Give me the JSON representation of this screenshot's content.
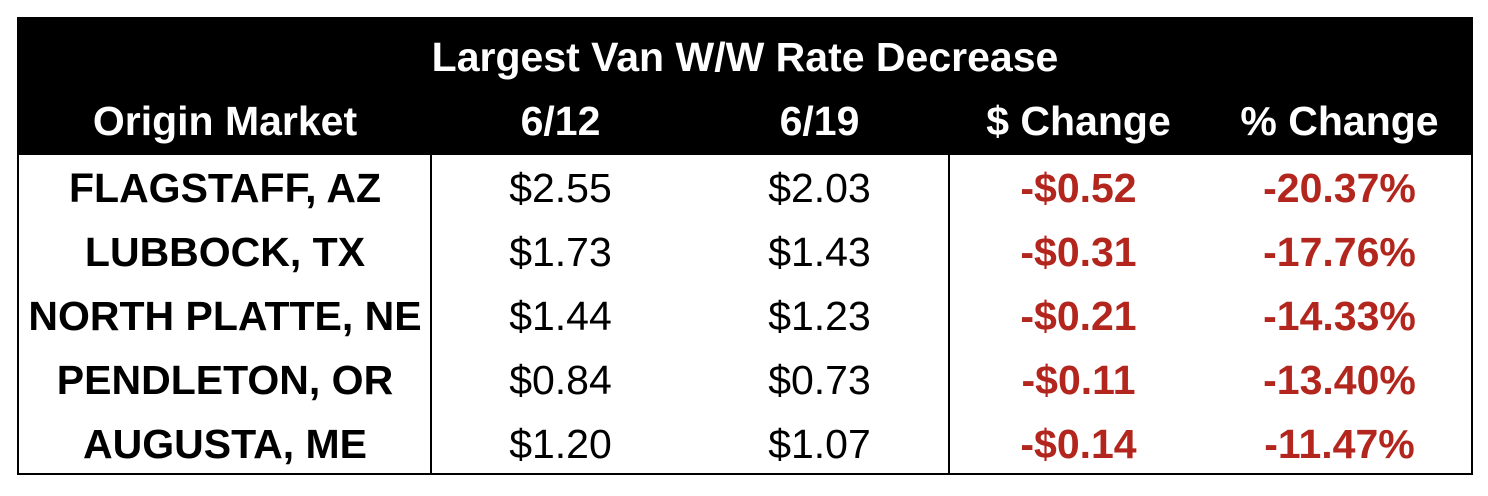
{
  "chart_data": {
    "type": "table",
    "title": "Largest Van W/W Rate Decrease",
    "columns": [
      "Origin Market",
      "6/12",
      "6/19",
      "$ Change",
      "% Change"
    ],
    "rows": [
      {
        "market": "FLAGSTAFF, AZ",
        "d1": "$2.55",
        "d2": "$2.03",
        "dollar_change": "-$0.52",
        "pct_change": "-20.37%"
      },
      {
        "market": "LUBBOCK, TX",
        "d1": "$1.73",
        "d2": "$1.43",
        "dollar_change": "-$0.31",
        "pct_change": "-17.76%"
      },
      {
        "market": "NORTH PLATTE, NE",
        "d1": "$1.44",
        "d2": "$1.23",
        "dollar_change": "-$0.21",
        "pct_change": "-14.33%"
      },
      {
        "market": "PENDLETON, OR",
        "d1": "$0.84",
        "d2": "$0.73",
        "dollar_change": "-$0.11",
        "pct_change": "-13.40%"
      },
      {
        "market": "AUGUSTA, ME",
        "d1": "$1.20",
        "d2": "$1.07",
        "dollar_change": "-$0.14",
        "pct_change": "-11.47%"
      }
    ],
    "colors": {
      "header_bg": "#000000",
      "header_text": "#ffffff",
      "negative_text": "#b3261e"
    }
  }
}
